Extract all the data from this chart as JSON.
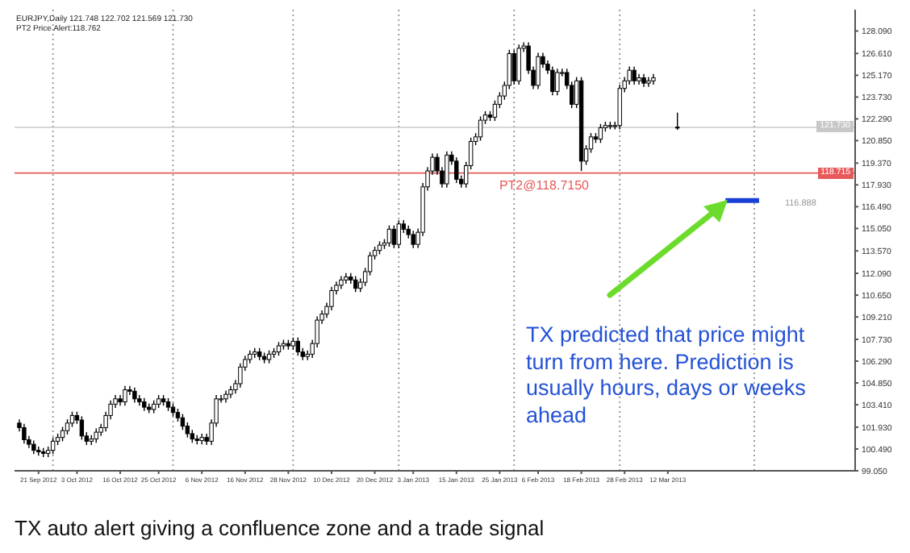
{
  "chart_data": {
    "type": "candlestick",
    "title": "EURJPY,Daily  121.748 122.702 121.569 121.730",
    "subtitle": "PT2 Price Alert:118.762",
    "categories": [
      null,
      null,
      null,
      null,
      "21 Sep 2012",
      null,
      null,
      null,
      null,
      null,
      null,
      null,
      "3 Oct 2012",
      null,
      null,
      null,
      null,
      null,
      null,
      null,
      null,
      "16 Oct 2012",
      null,
      null,
      null,
      null,
      null,
      null,
      null,
      "25 Oct 2012",
      null,
      null,
      null,
      null,
      null,
      null,
      null,
      null,
      "6 Nov 2012",
      null,
      null,
      null,
      null,
      null,
      null,
      null,
      null,
      "16 Nov 2012",
      null,
      null,
      null,
      null,
      null,
      null,
      null,
      null,
      "28 Nov 2012",
      null,
      null,
      null,
      null,
      null,
      null,
      null,
      null,
      "10 Dec 2012",
      null,
      null,
      null,
      null,
      null,
      null,
      null,
      null,
      "20 Dec 2012",
      null,
      null,
      null,
      null,
      null,
      null,
      null,
      "3 Jan 2013",
      null,
      null,
      null,
      null,
      null,
      null,
      null,
      null,
      "15 Jan 2013",
      null,
      null,
      null,
      null,
      null,
      null,
      null,
      null,
      "25 Jan 2013",
      null,
      null,
      null,
      null,
      null,
      null,
      null,
      "6 Feb 2013",
      null,
      null,
      null,
      null,
      null,
      null,
      null,
      null,
      "18 Feb 2013",
      null,
      null,
      null,
      null,
      null,
      null,
      null,
      null,
      "28 Feb 2013",
      null,
      null,
      null,
      null,
      null,
      null,
      null,
      null,
      "12 Mar 2013",
      null,
      null,
      null,
      null,
      null,
      null,
      null,
      null,
      null,
      null,
      null,
      null,
      null,
      null,
      null,
      null,
      null,
      null,
      null,
      null,
      null,
      null,
      null,
      null,
      null,
      null,
      null,
      null,
      null,
      null,
      null,
      null,
      null,
      null,
      null,
      null,
      null,
      null,
      null
    ],
    "ohlc": [
      [
        102.2,
        102.45,
        101.65,
        101.9
      ],
      [
        101.9,
        102.15,
        100.85,
        101.1
      ],
      [
        101.1,
        101.35,
        100.55,
        100.8
      ],
      [
        100.8,
        101.05,
        100.15,
        100.4
      ],
      [
        100.4,
        100.65,
        100.05,
        100.3
      ],
      [
        100.3,
        100.55,
        99.95,
        100.2
      ],
      [
        100.2,
        100.65,
        99.95,
        100.4
      ],
      [
        100.4,
        101.25,
        100.15,
        101.0
      ],
      [
        101.0,
        101.5,
        100.75,
        101.25
      ],
      [
        101.25,
        101.95,
        101.0,
        101.7
      ],
      [
        101.7,
        102.45,
        101.45,
        102.2
      ],
      [
        102.2,
        102.95,
        101.95,
        102.7
      ],
      [
        102.7,
        102.95,
        102.15,
        102.4
      ],
      [
        102.4,
        102.65,
        101.1,
        101.35
      ],
      [
        101.35,
        101.6,
        100.75,
        101.0
      ],
      [
        101.0,
        101.4,
        100.75,
        101.15
      ],
      [
        101.15,
        101.85,
        100.9,
        101.6
      ],
      [
        101.6,
        102.15,
        101.35,
        101.9
      ],
      [
        101.9,
        102.95,
        101.65,
        102.7
      ],
      [
        102.7,
        103.7,
        102.45,
        103.45
      ],
      [
        103.45,
        104.05,
        103.2,
        103.8
      ],
      [
        103.8,
        104.05,
        103.35,
        103.6
      ],
      [
        103.6,
        104.65,
        103.35,
        104.4
      ],
      [
        104.4,
        104.65,
        104.05,
        104.3
      ],
      [
        104.3,
        104.55,
        103.55,
        103.8
      ],
      [
        103.8,
        104.05,
        103.35,
        103.6
      ],
      [
        103.6,
        103.85,
        103.0,
        103.25
      ],
      [
        103.25,
        103.5,
        102.85,
        103.1
      ],
      [
        103.1,
        103.7,
        102.85,
        103.45
      ],
      [
        103.45,
        104.05,
        103.2,
        103.8
      ],
      [
        103.8,
        104.05,
        103.35,
        103.6
      ],
      [
        103.6,
        103.85,
        103.0,
        103.25
      ],
      [
        103.25,
        103.5,
        102.65,
        102.9
      ],
      [
        102.9,
        103.15,
        102.3,
        102.55
      ],
      [
        102.55,
        102.8,
        101.75,
        102.0
      ],
      [
        102.0,
        102.25,
        101.25,
        101.5
      ],
      [
        101.5,
        101.75,
        100.9,
        101.15
      ],
      [
        101.15,
        101.4,
        100.8,
        101.05
      ],
      [
        101.05,
        101.5,
        100.8,
        101.25
      ],
      [
        101.25,
        101.5,
        100.75,
        101.0
      ],
      [
        101.0,
        102.45,
        100.75,
        102.2
      ],
      [
        102.2,
        104.05,
        101.95,
        103.8
      ],
      [
        103.8,
        104.05,
        103.55,
        103.8
      ],
      [
        103.8,
        104.35,
        103.55,
        104.1
      ],
      [
        104.1,
        104.65,
        103.85,
        104.4
      ],
      [
        104.4,
        105.05,
        104.15,
        104.8
      ],
      [
        104.8,
        106.15,
        104.55,
        105.9
      ],
      [
        105.9,
        106.65,
        105.65,
        106.4
      ],
      [
        106.4,
        107.0,
        106.15,
        106.75
      ],
      [
        106.75,
        107.15,
        106.5,
        106.9
      ],
      [
        106.9,
        107.15,
        106.35,
        106.6
      ],
      [
        106.6,
        106.85,
        106.15,
        106.4
      ],
      [
        106.4,
        107.0,
        106.15,
        106.75
      ],
      [
        106.75,
        107.15,
        106.5,
        106.9
      ],
      [
        106.9,
        107.55,
        106.65,
        107.3
      ],
      [
        107.3,
        107.7,
        107.05,
        107.45
      ],
      [
        107.45,
        107.7,
        107.05,
        107.3
      ],
      [
        107.3,
        107.85,
        107.05,
        107.6
      ],
      [
        107.6,
        107.85,
        106.65,
        106.9
      ],
      [
        106.9,
        107.15,
        106.35,
        106.6
      ],
      [
        106.6,
        107.0,
        106.35,
        106.75
      ],
      [
        106.75,
        107.7,
        106.5,
        107.45
      ],
      [
        107.45,
        109.25,
        107.2,
        109.0
      ],
      [
        109.0,
        109.65,
        108.75,
        109.4
      ],
      [
        109.4,
        110.15,
        109.15,
        109.9
      ],
      [
        109.9,
        111.2,
        109.65,
        110.95
      ],
      [
        110.95,
        111.55,
        110.7,
        111.3
      ],
      [
        111.3,
        111.9,
        111.05,
        111.65
      ],
      [
        111.65,
        112.1,
        111.4,
        111.85
      ],
      [
        111.85,
        112.1,
        111.4,
        111.65
      ],
      [
        111.65,
        111.9,
        110.85,
        111.1
      ],
      [
        111.1,
        111.75,
        110.85,
        111.5
      ],
      [
        111.5,
        112.45,
        111.25,
        112.2
      ],
      [
        112.2,
        113.5,
        111.95,
        113.25
      ],
      [
        113.25,
        113.85,
        113.0,
        113.6
      ],
      [
        113.6,
        114.2,
        113.35,
        113.95
      ],
      [
        113.95,
        114.35,
        113.7,
        114.1
      ],
      [
        114.1,
        115.25,
        113.85,
        115.0
      ],
      [
        115.0,
        115.25,
        113.75,
        114.0
      ],
      [
        114.0,
        115.6,
        113.75,
        115.35
      ],
      [
        115.35,
        115.6,
        114.75,
        115.0
      ],
      [
        115.0,
        115.25,
        114.4,
        114.65
      ],
      [
        114.65,
        114.9,
        113.75,
        114.0
      ],
      [
        114.0,
        115.05,
        113.75,
        114.8
      ],
      [
        114.8,
        118.05,
        114.55,
        117.8
      ],
      [
        117.8,
        119.1,
        117.55,
        118.85
      ],
      [
        118.85,
        120.0,
        118.6,
        119.75
      ],
      [
        119.75,
        120.0,
        118.6,
        118.85
      ],
      [
        118.85,
        119.1,
        117.75,
        118.0
      ],
      [
        118.0,
        120.15,
        117.75,
        119.9
      ],
      [
        119.9,
        120.15,
        119.25,
        119.5
      ],
      [
        119.5,
        119.75,
        118.05,
        118.3
      ],
      [
        118.3,
        118.55,
        117.75,
        118.0
      ],
      [
        118.0,
        119.45,
        117.75,
        119.2
      ],
      [
        119.2,
        121.05,
        118.95,
        120.8
      ],
      [
        120.8,
        121.35,
        120.55,
        121.1
      ],
      [
        121.1,
        122.45,
        120.85,
        122.2
      ],
      [
        122.2,
        122.8,
        121.95,
        122.55
      ],
      [
        122.55,
        122.8,
        122.15,
        122.4
      ],
      [
        122.4,
        123.5,
        122.15,
        123.25
      ],
      [
        123.25,
        124.05,
        123.0,
        123.8
      ],
      [
        123.8,
        124.75,
        123.55,
        124.5
      ],
      [
        124.5,
        126.85,
        124.25,
        126.6
      ],
      [
        126.6,
        126.85,
        124.55,
        124.8
      ],
      [
        124.8,
        127.2,
        124.55,
        126.95
      ],
      [
        126.95,
        127.35,
        126.7,
        127.1
      ],
      [
        127.1,
        127.35,
        125.25,
        125.5
      ],
      [
        125.5,
        125.75,
        124.25,
        124.5
      ],
      [
        124.5,
        126.65,
        124.25,
        126.4
      ],
      [
        126.4,
        126.65,
        125.65,
        125.9
      ],
      [
        125.9,
        126.15,
        125.25,
        125.5
      ],
      [
        125.5,
        125.75,
        123.85,
        124.1
      ],
      [
        124.1,
        125.6,
        123.85,
        125.35
      ],
      [
        125.35,
        125.6,
        125.1,
        125.35
      ],
      [
        125.35,
        125.6,
        124.25,
        124.5
      ],
      [
        124.5,
        124.75,
        123.0,
        123.25
      ],
      [
        123.25,
        125.05,
        123.0,
        124.8
      ],
      [
        124.8,
        125.05,
        118.85,
        119.5
      ],
      [
        119.5,
        120.55,
        119.25,
        120.3
      ],
      [
        120.3,
        121.35,
        120.05,
        121.1
      ],
      [
        121.1,
        121.35,
        120.7,
        120.95
      ],
      [
        120.95,
        121.95,
        120.7,
        121.7
      ],
      [
        121.7,
        122.1,
        121.45,
        121.85
      ],
      [
        121.85,
        122.1,
        121.6,
        121.85
      ],
      [
        121.85,
        122.1,
        121.6,
        121.85
      ],
      [
        121.85,
        124.55,
        121.6,
        124.3
      ],
      [
        124.3,
        125.05,
        124.05,
        124.8
      ],
      [
        124.8,
        125.75,
        124.55,
        125.5
      ],
      [
        125.5,
        125.75,
        124.55,
        124.8
      ],
      [
        124.8,
        125.25,
        124.55,
        125.0
      ],
      [
        125.0,
        125.25,
        124.4,
        124.65
      ],
      [
        124.65,
        125.05,
        124.4,
        124.8
      ],
      [
        124.8,
        125.25,
        124.55,
        125.0
      ],
      null,
      null,
      null,
      null,
      [
        121.748,
        122.702,
        121.569,
        121.73
      ],
      null,
      null,
      null,
      null,
      null,
      null,
      null,
      null,
      null,
      null,
      null,
      null,
      null,
      null,
      null,
      null,
      null,
      null,
      null,
      null,
      null,
      null,
      null,
      null,
      null,
      null,
      null,
      null,
      null,
      null,
      null,
      null,
      null,
      null,
      null,
      null,
      null
    ],
    "series": [
      {
        "type": "line",
        "name": "116.888",
        "color": "#1a3fd6",
        "values": [
          null,
          null,
          null,
          null,
          null,
          null,
          null,
          null,
          null,
          null,
          null,
          null,
          null,
          null,
          null,
          null,
          null,
          null,
          null,
          null,
          null,
          null,
          null,
          null,
          null,
          null,
          null,
          null,
          null,
          null,
          null,
          null,
          null,
          null,
          null,
          null,
          null,
          null,
          null,
          null,
          null,
          null,
          null,
          null,
          null,
          null,
          null,
          null,
          null,
          null,
          null,
          null,
          null,
          null,
          null,
          null,
          null,
          null,
          null,
          null,
          null,
          null,
          null,
          null,
          null,
          null,
          null,
          null,
          null,
          null,
          null,
          null,
          null,
          null,
          null,
          null,
          null,
          null,
          null,
          null,
          null,
          null,
          null,
          null,
          null,
          null,
          null,
          null,
          null,
          null,
          null,
          null,
          null,
          null,
          null,
          null,
          null,
          null,
          null,
          null,
          null,
          null,
          null,
          null,
          null,
          null,
          null,
          null,
          null,
          null,
          null,
          null,
          null,
          null,
          null,
          null,
          null,
          null,
          null,
          null,
          null,
          null,
          null,
          null,
          null,
          null,
          null,
          null,
          null,
          null,
          null,
          null,
          null,
          null,
          null,
          null,
          null,
          null,
          null,
          null,
          null,
          null,
          null,
          null,
          null,
          null,
          null,
          116.9,
          116.9,
          116.9,
          116.9,
          116.9,
          116.9,
          116.9,
          116.9,
          null,
          null,
          null,
          null,
          null,
          null,
          null,
          null,
          null,
          null,
          null,
          null,
          null,
          null,
          null,
          null,
          null,
          null,
          null,
          null
        ]
      }
    ],
    "ylim": [
      99.05,
      129.5
    ],
    "yticks": [
      {
        "value": 99.05,
        "label": "99.050"
      },
      {
        "value": 100.49,
        "label": "100.490"
      },
      {
        "value": 101.93,
        "label": "101.930"
      },
      {
        "value": 103.41,
        "label": "103.410"
      },
      {
        "value": 104.85,
        "label": "104.850"
      },
      {
        "value": 106.29,
        "label": "106.290"
      },
      {
        "value": 107.73,
        "label": "107.730"
      },
      {
        "value": 109.21,
        "label": "109.210"
      },
      {
        "value": 110.65,
        "label": "110.650"
      },
      {
        "value": 112.09,
        "label": "112.090"
      },
      {
        "value": 113.57,
        "label": "113.570"
      },
      {
        "value": 115.05,
        "label": "115.050"
      },
      {
        "value": 116.49,
        "label": "116.490"
      },
      {
        "value": 117.93,
        "label": "117.930"
      },
      {
        "value": 119.37,
        "label": "119.370"
      },
      {
        "value": 120.85,
        "label": "120.850"
      },
      {
        "value": 122.29,
        "label": "122.290"
      },
      {
        "value": 123.73,
        "label": "123.730"
      },
      {
        "value": 125.17,
        "label": "125.170"
      },
      {
        "value": 126.61,
        "label": "126.610"
      },
      {
        "value": 128.09,
        "label": "128.090"
      }
    ],
    "ref_lines": [
      {
        "axis": "y",
        "value": 121.73,
        "color": "#c8c8c8",
        "line_style": "solid"
      },
      {
        "axis": "y",
        "value": 118.715,
        "color": "#e85a5a",
        "line_style": "solid",
        "label": "PT2@118.7150"
      }
    ],
    "annotations": [
      {
        "text": "121.730",
        "y": 121.73
      },
      {
        "text": "118.715",
        "y": 118.715
      },
      "TX predicted that price might turn from here. Prediction is usually hours, days or weeks ahead",
      "TX auto alert giving a confluence zone and a trade signal"
    ]
  }
}
